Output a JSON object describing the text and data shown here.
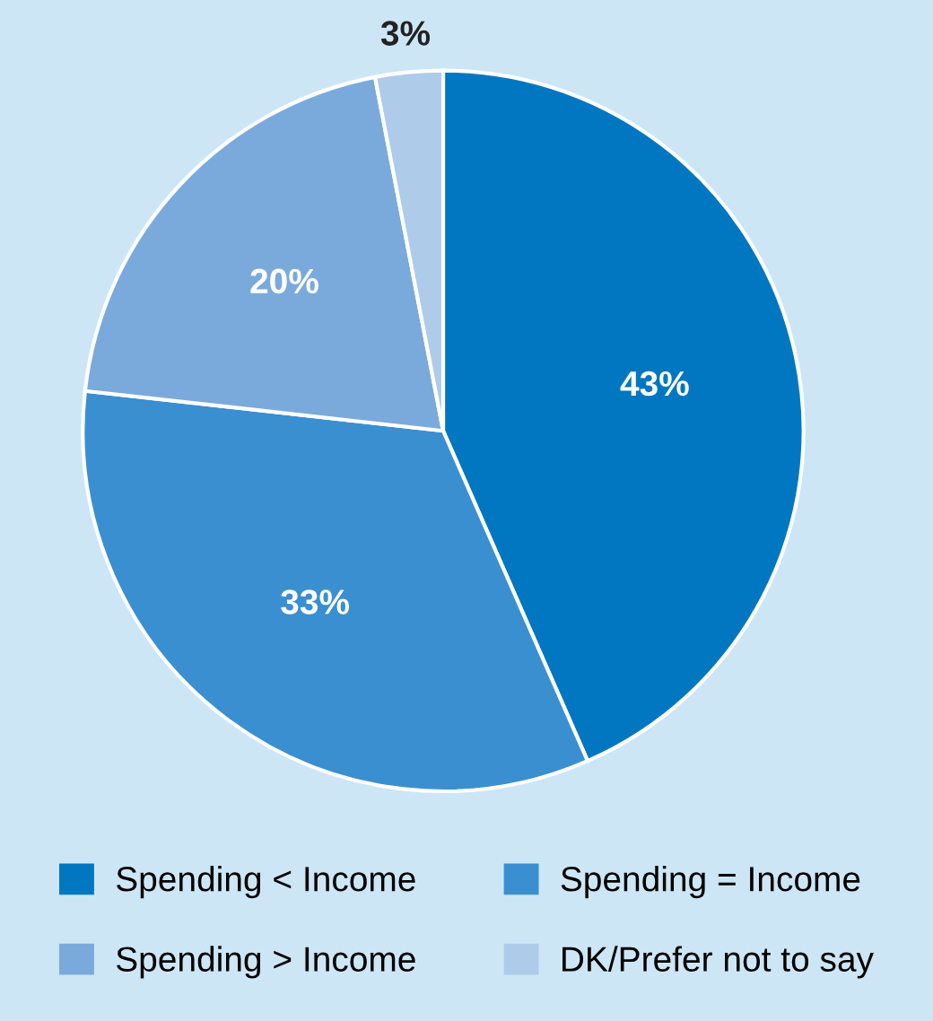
{
  "chart_data": {
    "type": "pie",
    "categories": [
      "Spending < Income",
      "Spending = Income",
      "Spending > Income",
      "DK/Prefer not to say"
    ],
    "values": [
      43,
      33,
      20,
      3
    ],
    "colors": [
      "#0077c0",
      "#3a8fd0",
      "#7aaadc",
      "#aecbe9"
    ],
    "value_labels": [
      "43%",
      "33%",
      "20%",
      "3%"
    ],
    "legend": "bottom"
  }
}
